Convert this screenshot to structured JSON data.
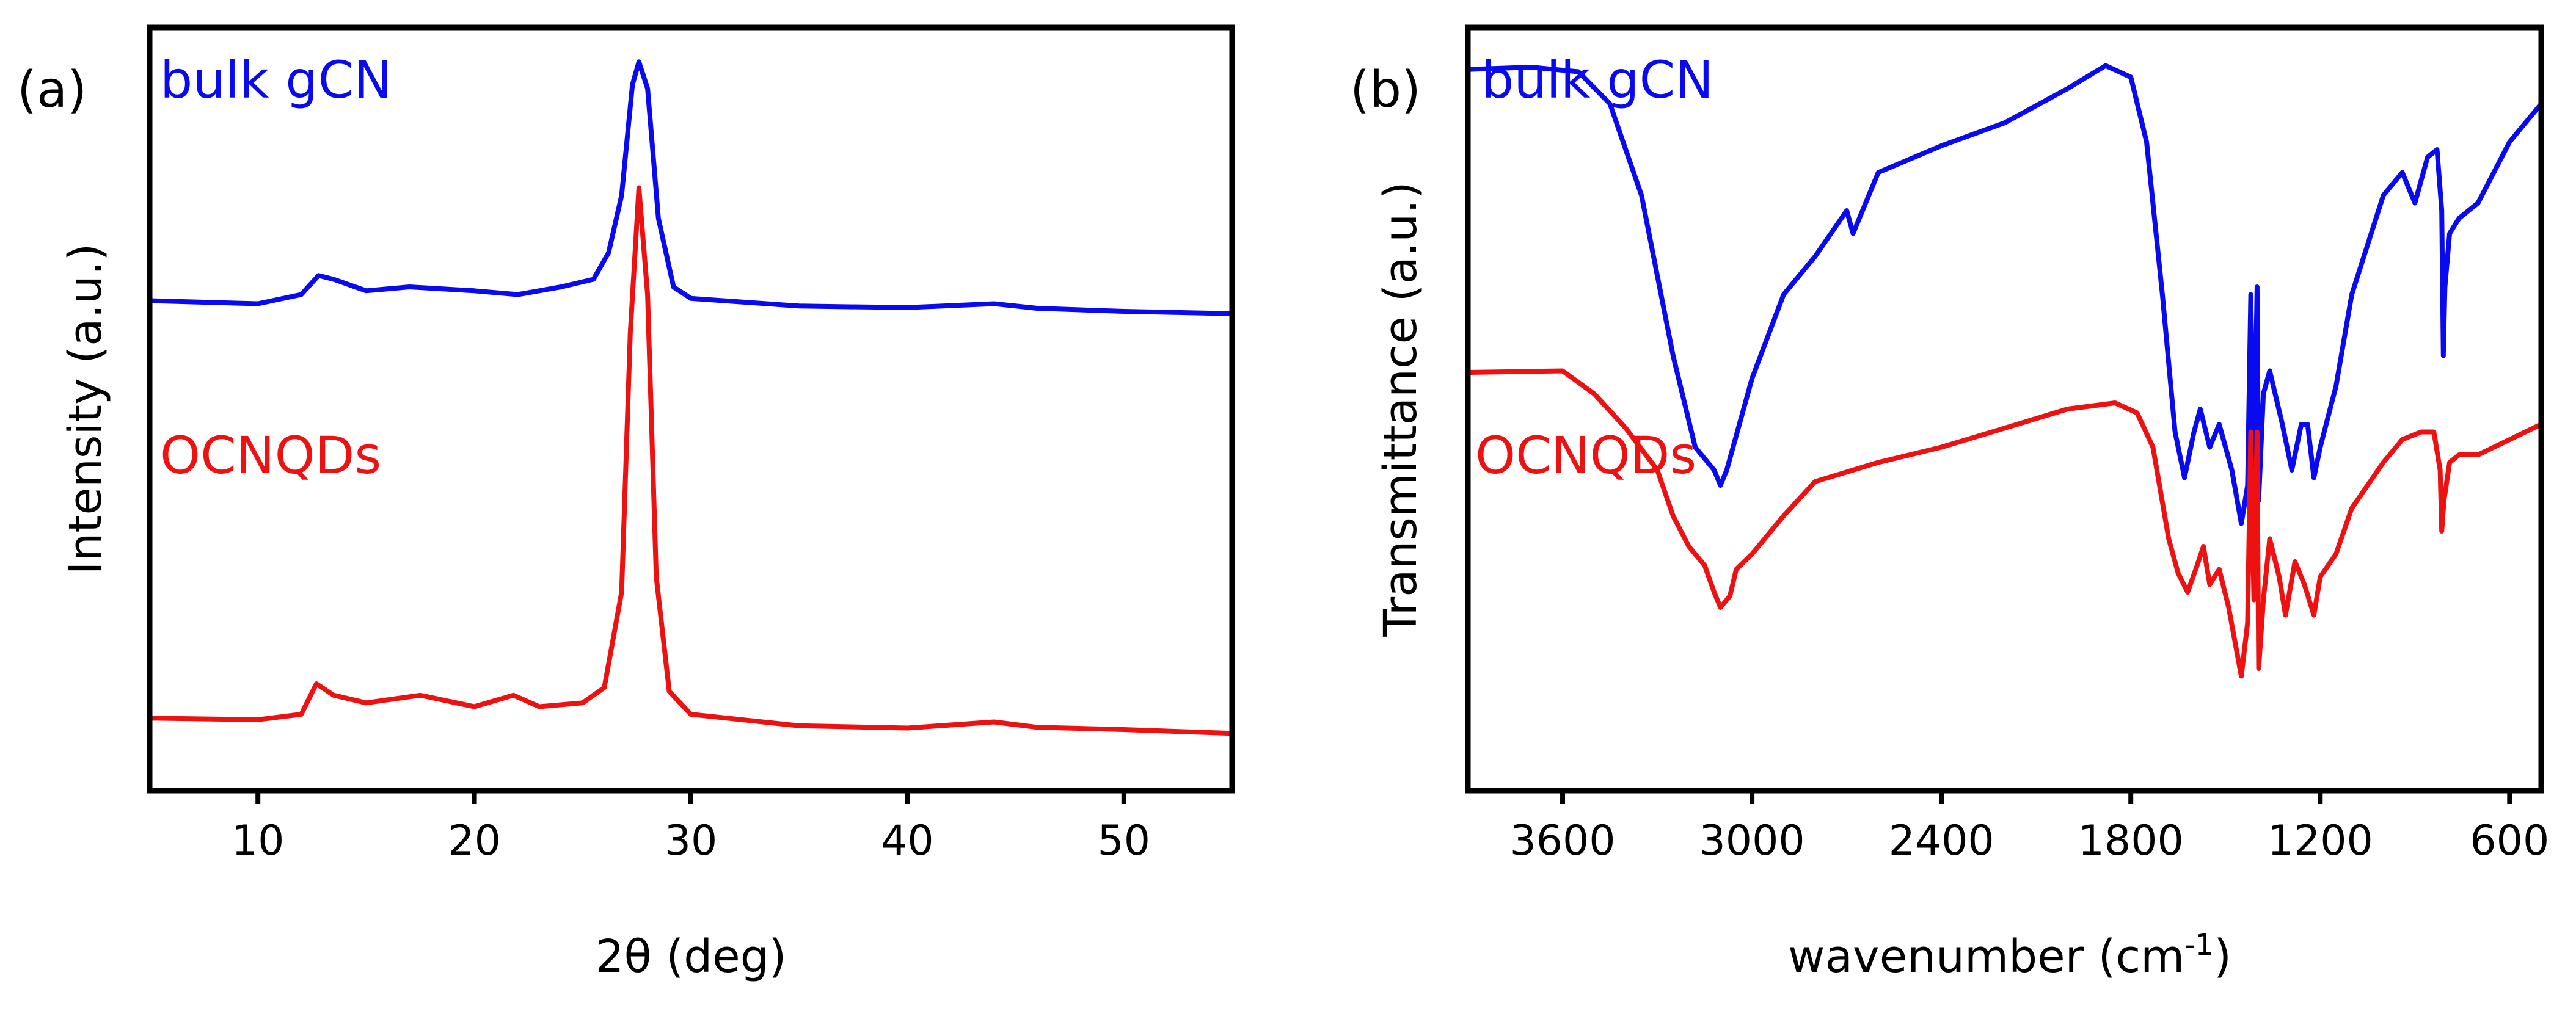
{
  "chart_data": [
    {
      "panel": "(a)",
      "type": "line",
      "xlabel": "2θ (deg)",
      "ylabel": "Intensity (a.u.)",
      "xlim": [
        5,
        55
      ],
      "ylim": [
        0,
        10
      ],
      "xticks": [
        10,
        20,
        30,
        40,
        50
      ],
      "x_reversed": false,
      "series": [
        {
          "name": "bulk gCN",
          "color": "#0a0af0",
          "points": [
            [
              5,
              6.42
            ],
            [
              10,
              6.38
            ],
            [
              12,
              6.5
            ],
            [
              12.8,
              6.75
            ],
            [
              13.5,
              6.7
            ],
            [
              15,
              6.55
            ],
            [
              17,
              6.6
            ],
            [
              20,
              6.55
            ],
            [
              22,
              6.5
            ],
            [
              24,
              6.6
            ],
            [
              25.5,
              6.7
            ],
            [
              26.2,
              7.05
            ],
            [
              26.8,
              7.8
            ],
            [
              27.3,
              9.25
            ],
            [
              27.6,
              9.55
            ],
            [
              28,
              9.2
            ],
            [
              28.5,
              7.5
            ],
            [
              29.2,
              6.6
            ],
            [
              30,
              6.45
            ],
            [
              35,
              6.35
            ],
            [
              40,
              6.33
            ],
            [
              44,
              6.38
            ],
            [
              46,
              6.32
            ],
            [
              50,
              6.28
            ],
            [
              55,
              6.25
            ]
          ]
        },
        {
          "name": "OCNQDs",
          "color": "#ee1111",
          "points": [
            [
              5,
              0.95
            ],
            [
              10,
              0.93
            ],
            [
              12,
              1.0
            ],
            [
              12.7,
              1.4
            ],
            [
              13.5,
              1.25
            ],
            [
              15,
              1.15
            ],
            [
              17.5,
              1.25
            ],
            [
              20,
              1.1
            ],
            [
              21.8,
              1.25
            ],
            [
              23,
              1.1
            ],
            [
              25,
              1.15
            ],
            [
              26,
              1.35
            ],
            [
              26.8,
              2.6
            ],
            [
              27.2,
              6.0
            ],
            [
              27.6,
              7.9
            ],
            [
              28.0,
              6.5
            ],
            [
              28.4,
              2.8
            ],
            [
              29,
              1.3
            ],
            [
              30,
              1.0
            ],
            [
              35,
              0.85
            ],
            [
              40,
              0.82
            ],
            [
              44,
              0.9
            ],
            [
              46,
              0.83
            ],
            [
              50,
              0.8
            ],
            [
              55,
              0.75
            ]
          ]
        }
      ]
    },
    {
      "panel": "(b)",
      "type": "line",
      "xlabel": "wavenumber (cm⁻¹)",
      "xlabel_main": "wavenumber (cm",
      "xlabel_sup": "-1",
      "xlabel_close": ")",
      "ylabel": "Transmittance (a.u.)",
      "xlim": [
        3900,
        500
      ],
      "ylim": [
        0,
        10
      ],
      "xticks": [
        3600,
        3000,
        2400,
        1800,
        1200,
        600
      ],
      "x_reversed": true,
      "series": [
        {
          "name": "bulk gCN",
          "color": "#0a0af0",
          "points": [
            [
              3900,
              9.45
            ],
            [
              3700,
              9.48
            ],
            [
              3550,
              9.42
            ],
            [
              3450,
              9.0
            ],
            [
              3350,
              7.8
            ],
            [
              3250,
              5.7
            ],
            [
              3180,
              4.5
            ],
            [
              3120,
              4.2
            ],
            [
              3100,
              4.0
            ],
            [
              3080,
              4.2
            ],
            [
              3000,
              5.4
            ],
            [
              2900,
              6.5
            ],
            [
              2800,
              7.0
            ],
            [
              2750,
              7.3
            ],
            [
              2700,
              7.6
            ],
            [
              2680,
              7.3
            ],
            [
              2600,
              8.1
            ],
            [
              2400,
              8.45
            ],
            [
              2200,
              8.75
            ],
            [
              2000,
              9.2
            ],
            [
              1880,
              9.5
            ],
            [
              1800,
              9.35
            ],
            [
              1750,
              8.5
            ],
            [
              1700,
              6.5
            ],
            [
              1660,
              4.7
            ],
            [
              1630,
              4.1
            ],
            [
              1600,
              4.7
            ],
            [
              1580,
              5.0
            ],
            [
              1550,
              4.5
            ],
            [
              1520,
              4.8
            ],
            [
              1480,
              4.2
            ],
            [
              1450,
              3.5
            ],
            [
              1430,
              4.0
            ],
            [
              1420,
              6.5
            ],
            [
              1410,
              4.0
            ],
            [
              1400,
              6.6
            ],
            [
              1395,
              3.8
            ],
            [
              1380,
              5.2
            ],
            [
              1360,
              5.5
            ],
            [
              1320,
              4.8
            ],
            [
              1290,
              4.2
            ],
            [
              1260,
              4.8
            ],
            [
              1240,
              4.8
            ],
            [
              1220,
              4.1
            ],
            [
              1200,
              4.5
            ],
            [
              1150,
              5.3
            ],
            [
              1100,
              6.5
            ],
            [
              1000,
              7.8
            ],
            [
              940,
              8.1
            ],
            [
              900,
              7.7
            ],
            [
              860,
              8.3
            ],
            [
              830,
              8.4
            ],
            [
              815,
              7.6
            ],
            [
              810,
              5.7
            ],
            [
              805,
              6.6
            ],
            [
              790,
              7.3
            ],
            [
              760,
              7.5
            ],
            [
              700,
              7.7
            ],
            [
              600,
              8.5
            ],
            [
              500,
              9.0
            ]
          ]
        },
        {
          "name": "OCNQDs",
          "color": "#ee1111",
          "points": [
            [
              3900,
              5.48
            ],
            [
              3600,
              5.5
            ],
            [
              3500,
              5.2
            ],
            [
              3400,
              4.75
            ],
            [
              3300,
              4.2
            ],
            [
              3250,
              3.6
            ],
            [
              3200,
              3.2
            ],
            [
              3150,
              2.95
            ],
            [
              3120,
              2.6
            ],
            [
              3100,
              2.4
            ],
            [
              3070,
              2.55
            ],
            [
              3050,
              2.9
            ],
            [
              3000,
              3.1
            ],
            [
              2900,
              3.6
            ],
            [
              2800,
              4.05
            ],
            [
              2600,
              4.3
            ],
            [
              2400,
              4.5
            ],
            [
              2200,
              4.75
            ],
            [
              2000,
              5.0
            ],
            [
              1850,
              5.08
            ],
            [
              1780,
              4.95
            ],
            [
              1730,
              4.5
            ],
            [
              1680,
              3.3
            ],
            [
              1650,
              2.85
            ],
            [
              1620,
              2.6
            ],
            [
              1590,
              2.95
            ],
            [
              1570,
              3.2
            ],
            [
              1550,
              2.7
            ],
            [
              1520,
              2.9
            ],
            [
              1490,
              2.4
            ],
            [
              1450,
              1.5
            ],
            [
              1430,
              2.2
            ],
            [
              1420,
              4.7
            ],
            [
              1410,
              2.5
            ],
            [
              1400,
              4.7
            ],
            [
              1395,
              1.6
            ],
            [
              1380,
              2.5
            ],
            [
              1360,
              3.3
            ],
            [
              1330,
              2.8
            ],
            [
              1310,
              2.3
            ],
            [
              1280,
              3.0
            ],
            [
              1250,
              2.7
            ],
            [
              1220,
              2.3
            ],
            [
              1200,
              2.8
            ],
            [
              1150,
              3.1
            ],
            [
              1100,
              3.7
            ],
            [
              1000,
              4.3
            ],
            [
              940,
              4.6
            ],
            [
              880,
              4.7
            ],
            [
              840,
              4.7
            ],
            [
              820,
              4.2
            ],
            [
              815,
              3.4
            ],
            [
              808,
              3.8
            ],
            [
              790,
              4.3
            ],
            [
              760,
              4.4
            ],
            [
              700,
              4.4
            ],
            [
              600,
              4.6
            ],
            [
              500,
              4.8
            ]
          ]
        }
      ]
    }
  ]
}
